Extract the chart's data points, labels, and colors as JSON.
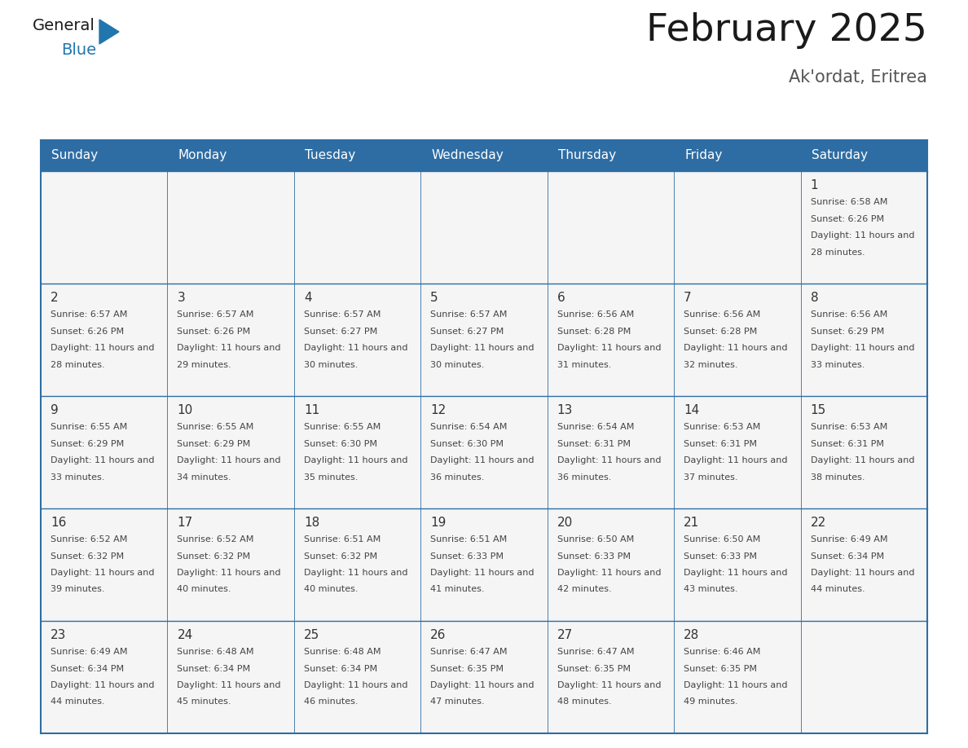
{
  "title": "February 2025",
  "subtitle": "Ak'ordat, Eritrea",
  "days_of_week": [
    "Sunday",
    "Monday",
    "Tuesday",
    "Wednesday",
    "Thursday",
    "Friday",
    "Saturday"
  ],
  "header_bg": "#2E6DA4",
  "header_text": "#FFFFFF",
  "cell_bg": "#F5F5F5",
  "border_color": "#2E6DA4",
  "row_line_color": "#2E6DA4",
  "text_color": "#444444",
  "title_color": "#1a1a1a",
  "day_num_color": "#333333",
  "logo_color_general": "#1a1a1a",
  "logo_color_blue": "#2176AE",
  "logo_triangle_color": "#2176AE",
  "calendar_data": [
    [
      null,
      null,
      null,
      null,
      null,
      null,
      {
        "day": 1,
        "sunrise": "6:58 AM",
        "sunset": "6:26 PM",
        "daylight": "11 hours and 28 minutes."
      }
    ],
    [
      {
        "day": 2,
        "sunrise": "6:57 AM",
        "sunset": "6:26 PM",
        "daylight": "11 hours and 28 minutes."
      },
      {
        "day": 3,
        "sunrise": "6:57 AM",
        "sunset": "6:26 PM",
        "daylight": "11 hours and 29 minutes."
      },
      {
        "day": 4,
        "sunrise": "6:57 AM",
        "sunset": "6:27 PM",
        "daylight": "11 hours and 30 minutes."
      },
      {
        "day": 5,
        "sunrise": "6:57 AM",
        "sunset": "6:27 PM",
        "daylight": "11 hours and 30 minutes."
      },
      {
        "day": 6,
        "sunrise": "6:56 AM",
        "sunset": "6:28 PM",
        "daylight": "11 hours and 31 minutes."
      },
      {
        "day": 7,
        "sunrise": "6:56 AM",
        "sunset": "6:28 PM",
        "daylight": "11 hours and 32 minutes."
      },
      {
        "day": 8,
        "sunrise": "6:56 AM",
        "sunset": "6:29 PM",
        "daylight": "11 hours and 33 minutes."
      }
    ],
    [
      {
        "day": 9,
        "sunrise": "6:55 AM",
        "sunset": "6:29 PM",
        "daylight": "11 hours and 33 minutes."
      },
      {
        "day": 10,
        "sunrise": "6:55 AM",
        "sunset": "6:29 PM",
        "daylight": "11 hours and 34 minutes."
      },
      {
        "day": 11,
        "sunrise": "6:55 AM",
        "sunset": "6:30 PM",
        "daylight": "11 hours and 35 minutes."
      },
      {
        "day": 12,
        "sunrise": "6:54 AM",
        "sunset": "6:30 PM",
        "daylight": "11 hours and 36 minutes."
      },
      {
        "day": 13,
        "sunrise": "6:54 AM",
        "sunset": "6:31 PM",
        "daylight": "11 hours and 36 minutes."
      },
      {
        "day": 14,
        "sunrise": "6:53 AM",
        "sunset": "6:31 PM",
        "daylight": "11 hours and 37 minutes."
      },
      {
        "day": 15,
        "sunrise": "6:53 AM",
        "sunset": "6:31 PM",
        "daylight": "11 hours and 38 minutes."
      }
    ],
    [
      {
        "day": 16,
        "sunrise": "6:52 AM",
        "sunset": "6:32 PM",
        "daylight": "11 hours and 39 minutes."
      },
      {
        "day": 17,
        "sunrise": "6:52 AM",
        "sunset": "6:32 PM",
        "daylight": "11 hours and 40 minutes."
      },
      {
        "day": 18,
        "sunrise": "6:51 AM",
        "sunset": "6:32 PM",
        "daylight": "11 hours and 40 minutes."
      },
      {
        "day": 19,
        "sunrise": "6:51 AM",
        "sunset": "6:33 PM",
        "daylight": "11 hours and 41 minutes."
      },
      {
        "day": 20,
        "sunrise": "6:50 AM",
        "sunset": "6:33 PM",
        "daylight": "11 hours and 42 minutes."
      },
      {
        "day": 21,
        "sunrise": "6:50 AM",
        "sunset": "6:33 PM",
        "daylight": "11 hours and 43 minutes."
      },
      {
        "day": 22,
        "sunrise": "6:49 AM",
        "sunset": "6:34 PM",
        "daylight": "11 hours and 44 minutes."
      }
    ],
    [
      {
        "day": 23,
        "sunrise": "6:49 AM",
        "sunset": "6:34 PM",
        "daylight": "11 hours and 44 minutes."
      },
      {
        "day": 24,
        "sunrise": "6:48 AM",
        "sunset": "6:34 PM",
        "daylight": "11 hours and 45 minutes."
      },
      {
        "day": 25,
        "sunrise": "6:48 AM",
        "sunset": "6:34 PM",
        "daylight": "11 hours and 46 minutes."
      },
      {
        "day": 26,
        "sunrise": "6:47 AM",
        "sunset": "6:35 PM",
        "daylight": "11 hours and 47 minutes."
      },
      {
        "day": 27,
        "sunrise": "6:47 AM",
        "sunset": "6:35 PM",
        "daylight": "11 hours and 48 minutes."
      },
      {
        "day": 28,
        "sunrise": "6:46 AM",
        "sunset": "6:35 PM",
        "daylight": "11 hours and 49 minutes."
      },
      null
    ]
  ]
}
